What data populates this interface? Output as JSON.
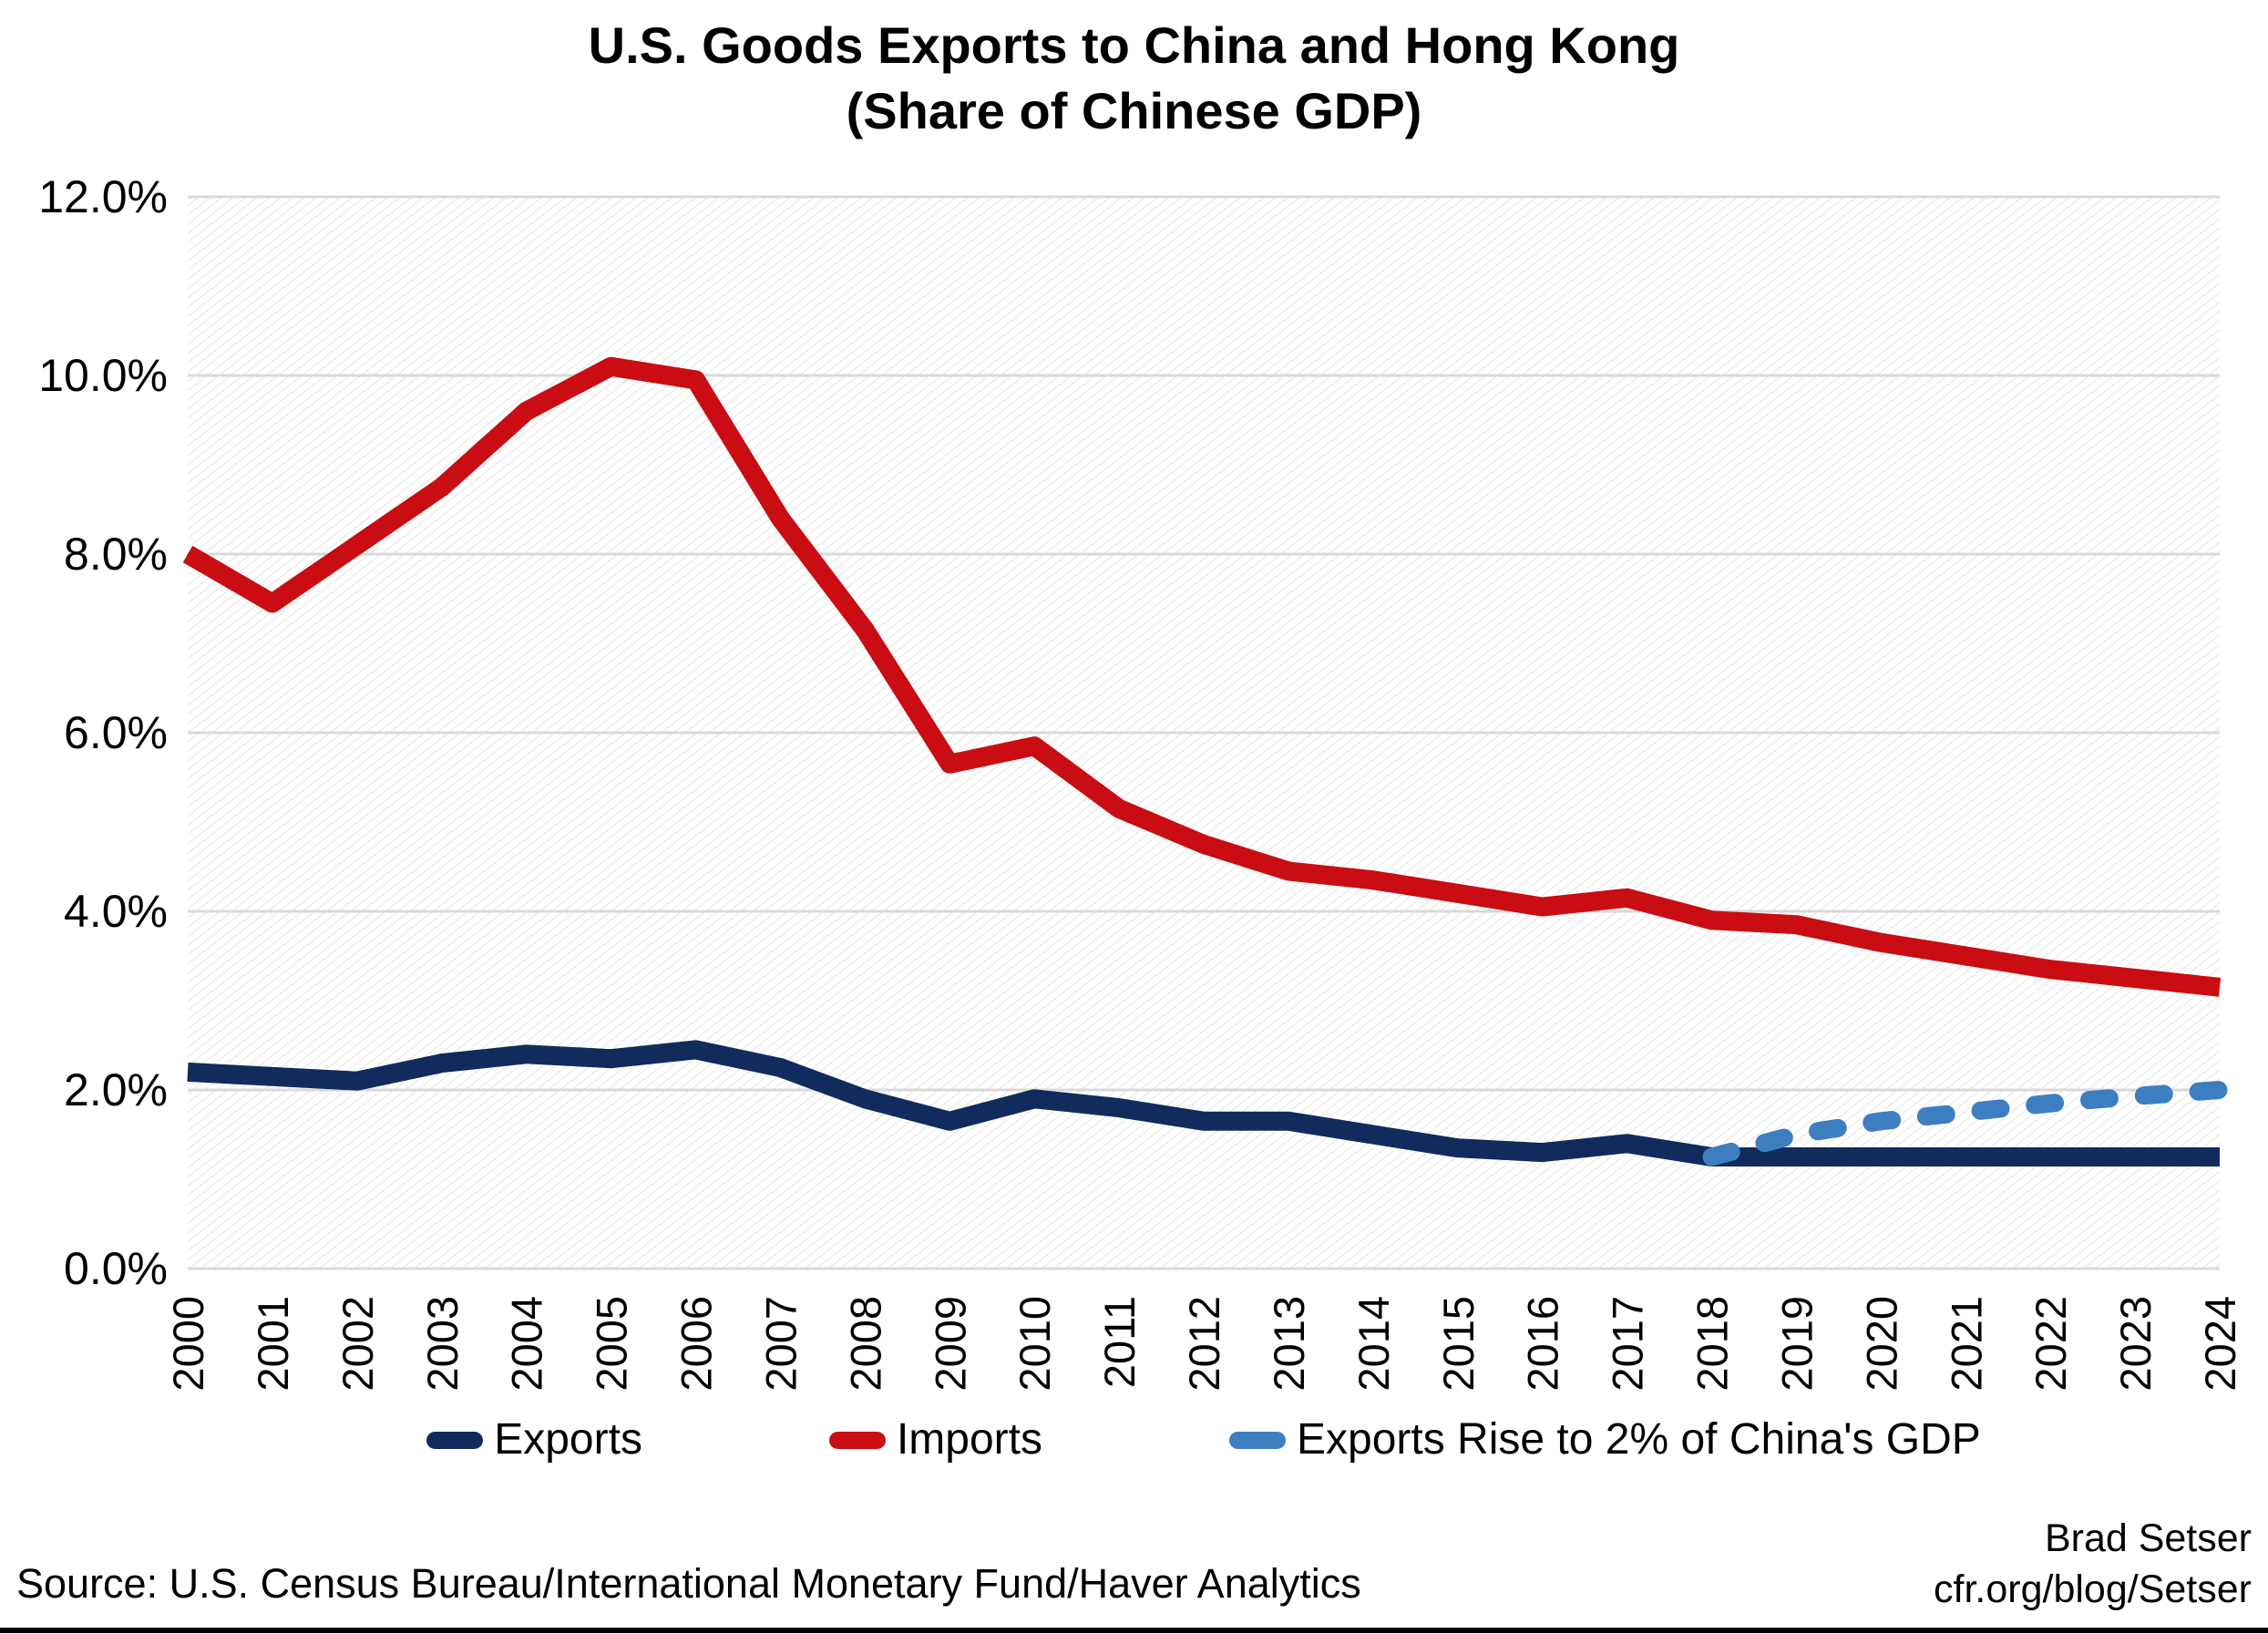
{
  "title": {
    "line1": "U.S. Goods Exports to China and Hong Kong",
    "line2": "(Share of Chinese GDP)"
  },
  "legend": [
    {
      "label": "Exports",
      "color": "#112B5C"
    },
    {
      "label": "Imports",
      "color": "#C90D12"
    },
    {
      "label": "Exports Rise to 2% of China's GDP",
      "color": "#3D7EC0"
    }
  ],
  "source": "Source: U.S. Census Bureau/International Monetary Fund/Haver Analytics",
  "credit": {
    "line1": "Brad Setser",
    "line2": "cfr.org/blog/Setser"
  },
  "colors": {
    "exports": "#112B5C",
    "imports": "#C90D12",
    "scenario": "#3D7EC0",
    "gridline": "#D9D9D9",
    "hatch": "#E8E8E8",
    "background": "#FFFFFF"
  },
  "chart_data": {
    "type": "line",
    "title": "U.S. Goods Exports to China and Hong Kong (Share of Chinese GDP)",
    "categories": [
      "2000",
      "2001",
      "2002",
      "2003",
      "2004",
      "2005",
      "2006",
      "2007",
      "2008",
      "2009",
      "2010",
      "2011",
      "2012",
      "2013",
      "2014",
      "2015",
      "2016",
      "2017",
      "2018",
      "2019",
      "2020",
      "2021",
      "2022",
      "2023",
      "2024"
    ],
    "y_axis": {
      "min": 0,
      "max": 12,
      "tick_step": 2,
      "tick_labels": [
        "0.0%",
        "2.0%",
        "4.0%",
        "6.0%",
        "8.0%",
        "10.0%",
        "12.0%"
      ]
    },
    "grid": true,
    "legend_position": "bottom",
    "series": [
      {
        "name": "Exports",
        "color": "#112B5C",
        "dash": false,
        "values": [
          2.2,
          2.15,
          2.1,
          2.3,
          2.4,
          2.35,
          2.45,
          2.25,
          1.9,
          1.65,
          1.9,
          1.8,
          1.65,
          1.65,
          1.5,
          1.35,
          1.3,
          1.4,
          1.25,
          1.25,
          1.25,
          1.25,
          1.25,
          1.25,
          1.25
        ]
      },
      {
        "name": "Imports",
        "color": "#C90D12",
        "dash": false,
        "values": [
          8.0,
          7.45,
          8.1,
          8.75,
          9.6,
          10.1,
          9.95,
          8.4,
          7.15,
          5.65,
          5.85,
          5.15,
          4.75,
          4.45,
          4.35,
          4.2,
          4.05,
          4.15,
          3.9,
          3.85,
          3.65,
          3.5,
          3.35,
          3.25,
          3.15
        ]
      },
      {
        "name": "Exports Rise to 2% of China's GDP",
        "color": "#3D7EC0",
        "dash": true,
        "values": [
          null,
          null,
          null,
          null,
          null,
          null,
          null,
          null,
          null,
          null,
          null,
          null,
          null,
          null,
          null,
          null,
          null,
          null,
          1.25,
          1.5,
          1.65,
          1.75,
          1.85,
          1.93,
          2.0
        ]
      }
    ]
  }
}
